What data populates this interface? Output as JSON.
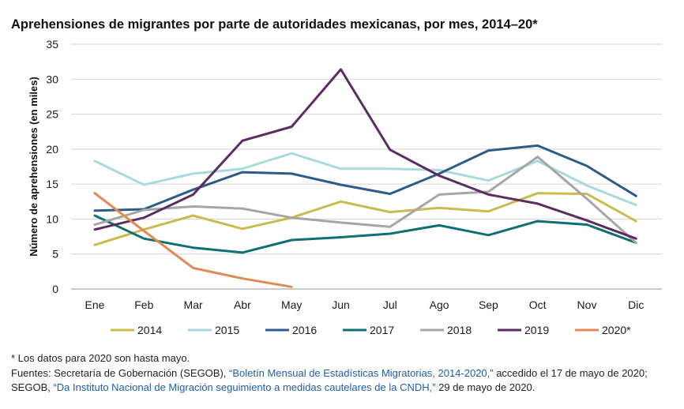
{
  "chart_data": {
    "type": "line",
    "title": "Aprehensiones de migrantes por parte de autoridades mexicanas, por mes, 2014–20*",
    "xlabel": "",
    "ylabel": "Número de aprehensiones (en miles)",
    "categories": [
      "Ene",
      "Feb",
      "Mar",
      "Abr",
      "May",
      "Jun",
      "Jul",
      "Ago",
      "Sep",
      "Oct",
      "Nov",
      "Dic"
    ],
    "ylim": [
      0,
      35
    ],
    "yticks": [
      0,
      5,
      10,
      15,
      20,
      25,
      30,
      35
    ],
    "grid": "horizontal",
    "legend": "bottom",
    "series": [
      {
        "name": "2014",
        "color": "#c9bb4f",
        "values": [
          6.3,
          8.5,
          10.5,
          8.6,
          10.2,
          12.5,
          11.0,
          11.6,
          11.1,
          13.7,
          13.6,
          9.7
        ]
      },
      {
        "name": "2015",
        "color": "#a8dadc",
        "values": [
          18.3,
          14.9,
          16.5,
          17.2,
          19.4,
          17.2,
          17.2,
          17.0,
          15.5,
          18.3,
          14.8,
          12.0
        ]
      },
      {
        "name": "2016",
        "color": "#2e5c8a",
        "values": [
          11.2,
          11.4,
          14.2,
          16.7,
          16.5,
          14.9,
          13.6,
          16.5,
          19.8,
          20.5,
          17.6,
          13.3
        ]
      },
      {
        "name": "2017",
        "color": "#0e7073",
        "values": [
          10.5,
          7.2,
          5.9,
          5.2,
          7.0,
          7.4,
          7.9,
          9.1,
          7.7,
          9.7,
          9.2,
          6.6
        ]
      },
      {
        "name": "2018",
        "color": "#a6a6a6",
        "values": [
          9.2,
          11.3,
          11.8,
          11.5,
          10.2,
          9.5,
          8.9,
          13.5,
          13.9,
          18.9,
          12.9,
          6.6
        ]
      },
      {
        "name": "2019",
        "color": "#5c2d62",
        "values": [
          8.5,
          10.2,
          13.5,
          21.2,
          23.2,
          31.4,
          19.9,
          16.2,
          13.5,
          12.2,
          9.8,
          7.2
        ]
      },
      {
        "name": "2020*",
        "color": "#e08a55",
        "values": [
          13.7,
          8.3,
          3.0,
          1.5,
          0.3,
          null,
          null,
          null,
          null,
          null,
          null,
          null
        ]
      }
    ]
  },
  "notes": {
    "footnote": "* Los datos para 2020 son hasta mayo.",
    "sources_line1_prefix": "Fuentes: Secretaría de Gobernación (SEGOB), ",
    "sources_line1_link": "“Boletín Mensual de Estadísticas Migratorias, 2014-2020,”",
    "sources_line1_suffix": " accedido el 17 de mayo de 2020;",
    "sources_line2_prefix": "SEGOB, ",
    "sources_line2_link": "“Da Instituto Nacional de Migración seguimiento a medidas cautelares de la CNDH,”",
    "sources_line2_suffix": " 29 de mayo de 2020."
  }
}
